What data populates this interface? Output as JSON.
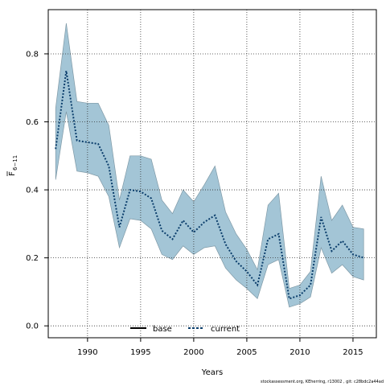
{
  "chart_data": {
    "type": "line",
    "xlabel": "Years",
    "ylabel_main": "F",
    "ylabel_sub": "6−11",
    "xlim": [
      1986.3,
      2017.2
    ],
    "ylim": [
      -0.035,
      0.93
    ],
    "x_ticks": [
      1990,
      1995,
      2000,
      2005,
      2010,
      2015
    ],
    "y_ticks": [
      0.0,
      0.2,
      0.4,
      0.6,
      0.8
    ],
    "y_tick_labels": [
      "0.0",
      "0.2",
      "0.4",
      "0.6",
      "0.8"
    ],
    "grid": true,
    "legend_position": "bottom-center",
    "series": [
      {
        "name": "base",
        "style": "solid",
        "color": "#000000",
        "values": []
      },
      {
        "name": "current",
        "style": "dotted",
        "color": "#0a3d6b",
        "x": [
          1987,
          1988,
          1989,
          1990,
          1991,
          1992,
          1993,
          1994,
          1995,
          1996,
          1997,
          1998,
          1999,
          2000,
          2001,
          2002,
          2003,
          2004,
          2005,
          2006,
          2007,
          2008,
          2009,
          2010,
          2011,
          2012,
          2013,
          2014,
          2015,
          2016
        ],
        "values": [
          0.52,
          0.75,
          0.545,
          0.54,
          0.535,
          0.47,
          0.29,
          0.4,
          0.395,
          0.375,
          0.28,
          0.255,
          0.31,
          0.275,
          0.305,
          0.325,
          0.24,
          0.19,
          0.16,
          0.12,
          0.255,
          0.27,
          0.08,
          0.09,
          0.12,
          0.32,
          0.22,
          0.25,
          0.21,
          0.2
        ],
        "lower": [
          0.43,
          0.63,
          0.455,
          0.45,
          0.44,
          0.38,
          0.23,
          0.315,
          0.31,
          0.285,
          0.21,
          0.195,
          0.235,
          0.21,
          0.23,
          0.235,
          0.17,
          0.135,
          0.11,
          0.08,
          0.18,
          0.195,
          0.055,
          0.065,
          0.085,
          0.23,
          0.155,
          0.18,
          0.145,
          0.135
        ],
        "upper": [
          0.64,
          0.89,
          0.66,
          0.655,
          0.655,
          0.59,
          0.37,
          0.5,
          0.5,
          0.49,
          0.37,
          0.33,
          0.4,
          0.365,
          0.415,
          0.47,
          0.335,
          0.27,
          0.225,
          0.165,
          0.355,
          0.39,
          0.11,
          0.12,
          0.16,
          0.44,
          0.31,
          0.355,
          0.29,
          0.285
        ]
      }
    ],
    "band_color": "#a3c5d6",
    "band_edge_color": "#7f99a6"
  },
  "footer_text": "stockassessment.org, KEherring, r13002 , git: c28bdc2a44ad"
}
